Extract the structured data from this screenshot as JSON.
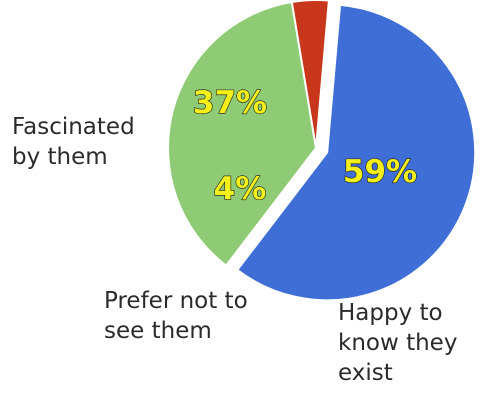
{
  "chart_data": {
    "type": "pie",
    "categories": [
      "Happy to know they exist",
      "Fascinated by them",
      "Prefer not to see them"
    ],
    "values": [
      59,
      37,
      4
    ],
    "value_labels": [
      "59%",
      "37%",
      "4%"
    ],
    "colors": [
      "#3f6fd6",
      "#8fca74",
      "#c8361b"
    ],
    "exploded": "Happy to know they exist",
    "title": "",
    "legend": "none"
  },
  "labels": {
    "fascinated": "Fascinated\nby them",
    "prefer": "Prefer not to\nsee them",
    "happy": "Happy to\nknow they\nexist"
  }
}
